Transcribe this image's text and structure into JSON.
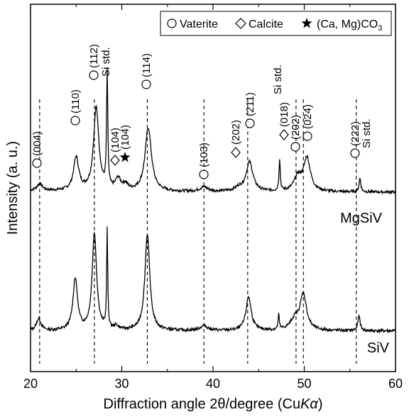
{
  "chart_data": {
    "type": "line",
    "xlabel_main": "Diffraction angle 2θ/degree (Cu",
    "xlabel_k": "K",
    "xlabel_alpha": "α",
    "xlabel_close": ")",
    "ylabel": "Intensity (a. u.)",
    "xlim": [
      20,
      60
    ],
    "xticks": [
      20,
      30,
      40,
      50,
      60
    ],
    "grid": false,
    "legend_position": "top-right",
    "legend": [
      {
        "symbol": "circle",
        "label": "Vaterite"
      },
      {
        "symbol": "diamond",
        "label": "Calcite"
      },
      {
        "symbol": "star",
        "label": "(Ca, Mg)CO",
        "subscript": "3"
      }
    ],
    "series": [
      {
        "name": "MgSiV",
        "peaks": [
          {
            "x": 21.0,
            "h": 0.06,
            "w": 0.35
          },
          {
            "x": 25.0,
            "h": 0.29,
            "w": 0.35
          },
          {
            "x": 27.2,
            "h": 0.73,
            "w": 0.35
          },
          {
            "x": 28.4,
            "h": 1.02,
            "w": 0.08
          },
          {
            "x": 29.6,
            "h": 0.1,
            "w": 0.35
          },
          {
            "x": 30.4,
            "h": 0.05,
            "w": 0.3
          },
          {
            "x": 32.9,
            "h": 0.56,
            "w": 0.42
          },
          {
            "x": 39.0,
            "h": 0.04,
            "w": 0.5
          },
          {
            "x": 42.8,
            "h": 0.03,
            "w": 0.5
          },
          {
            "x": 44.0,
            "h": 0.26,
            "w": 0.45
          },
          {
            "x": 47.3,
            "h": 0.28,
            "w": 0.08
          },
          {
            "x": 49.3,
            "h": 0.12,
            "w": 0.5
          },
          {
            "x": 50.3,
            "h": 0.29,
            "w": 0.45
          },
          {
            "x": 56.1,
            "h": 0.12,
            "w": 0.12
          }
        ]
      },
      {
        "name": "SiV",
        "peaks": [
          {
            "x": 20.9,
            "h": 0.1,
            "w": 0.3
          },
          {
            "x": 24.9,
            "h": 0.43,
            "w": 0.3
          },
          {
            "x": 27.0,
            "h": 0.8,
            "w": 0.3
          },
          {
            "x": 28.4,
            "h": 0.81,
            "w": 0.07
          },
          {
            "x": 29.4,
            "h": 0.03,
            "w": 0.3
          },
          {
            "x": 32.8,
            "h": 0.8,
            "w": 0.32
          },
          {
            "x": 39.0,
            "h": 0.04,
            "w": 0.5
          },
          {
            "x": 43.9,
            "h": 0.28,
            "w": 0.35
          },
          {
            "x": 47.2,
            "h": 0.12,
            "w": 0.08
          },
          {
            "x": 49.0,
            "h": 0.09,
            "w": 0.6
          },
          {
            "x": 49.9,
            "h": 0.29,
            "w": 0.42
          },
          {
            "x": 56.0,
            "h": 0.12,
            "w": 0.15
          }
        ]
      }
    ],
    "reference_lines": [
      21.0,
      27.0,
      32.8,
      39.0,
      43.8,
      49.1,
      49.9,
      55.7
    ],
    "annotations": [
      {
        "symbol": "circle",
        "text": "(004)",
        "x": 21.0
      },
      {
        "symbol": "circle",
        "text": "(110)",
        "x": 25.1
      },
      {
        "symbol": "circle",
        "text": "(112)",
        "x": 26.9
      },
      {
        "symbol": "none",
        "text": "Si std.",
        "x": 28.0
      },
      {
        "symbol": "diamond",
        "text": "(104)",
        "x": 29.5
      },
      {
        "symbol": "star",
        "text": "(104)",
        "x": 30.6
      },
      {
        "symbol": "circle",
        "text": "(114)",
        "x": 32.7
      },
      {
        "symbol": "circle",
        "text": "(103)",
        "x": 38.9
      },
      {
        "symbol": "diamond",
        "text": "(202)",
        "x": 42.6
      },
      {
        "symbol": "circle",
        "text": "(211)",
        "x": 44.0
      },
      {
        "symbol": "none",
        "text": "Si std.",
        "x": 47.4
      },
      {
        "symbol": "diamond",
        "text": "(018)",
        "x": 48.4
      },
      {
        "symbol": "circle",
        "text": "(202)",
        "x": 49.0
      },
      {
        "symbol": "circle",
        "text": "(024)",
        "x": 50.0
      },
      {
        "symbol": "circle",
        "text": "(222)",
        "x": 55.6
      },
      {
        "symbol": "none",
        "text": "Si std.",
        "x": 56.6
      }
    ]
  }
}
